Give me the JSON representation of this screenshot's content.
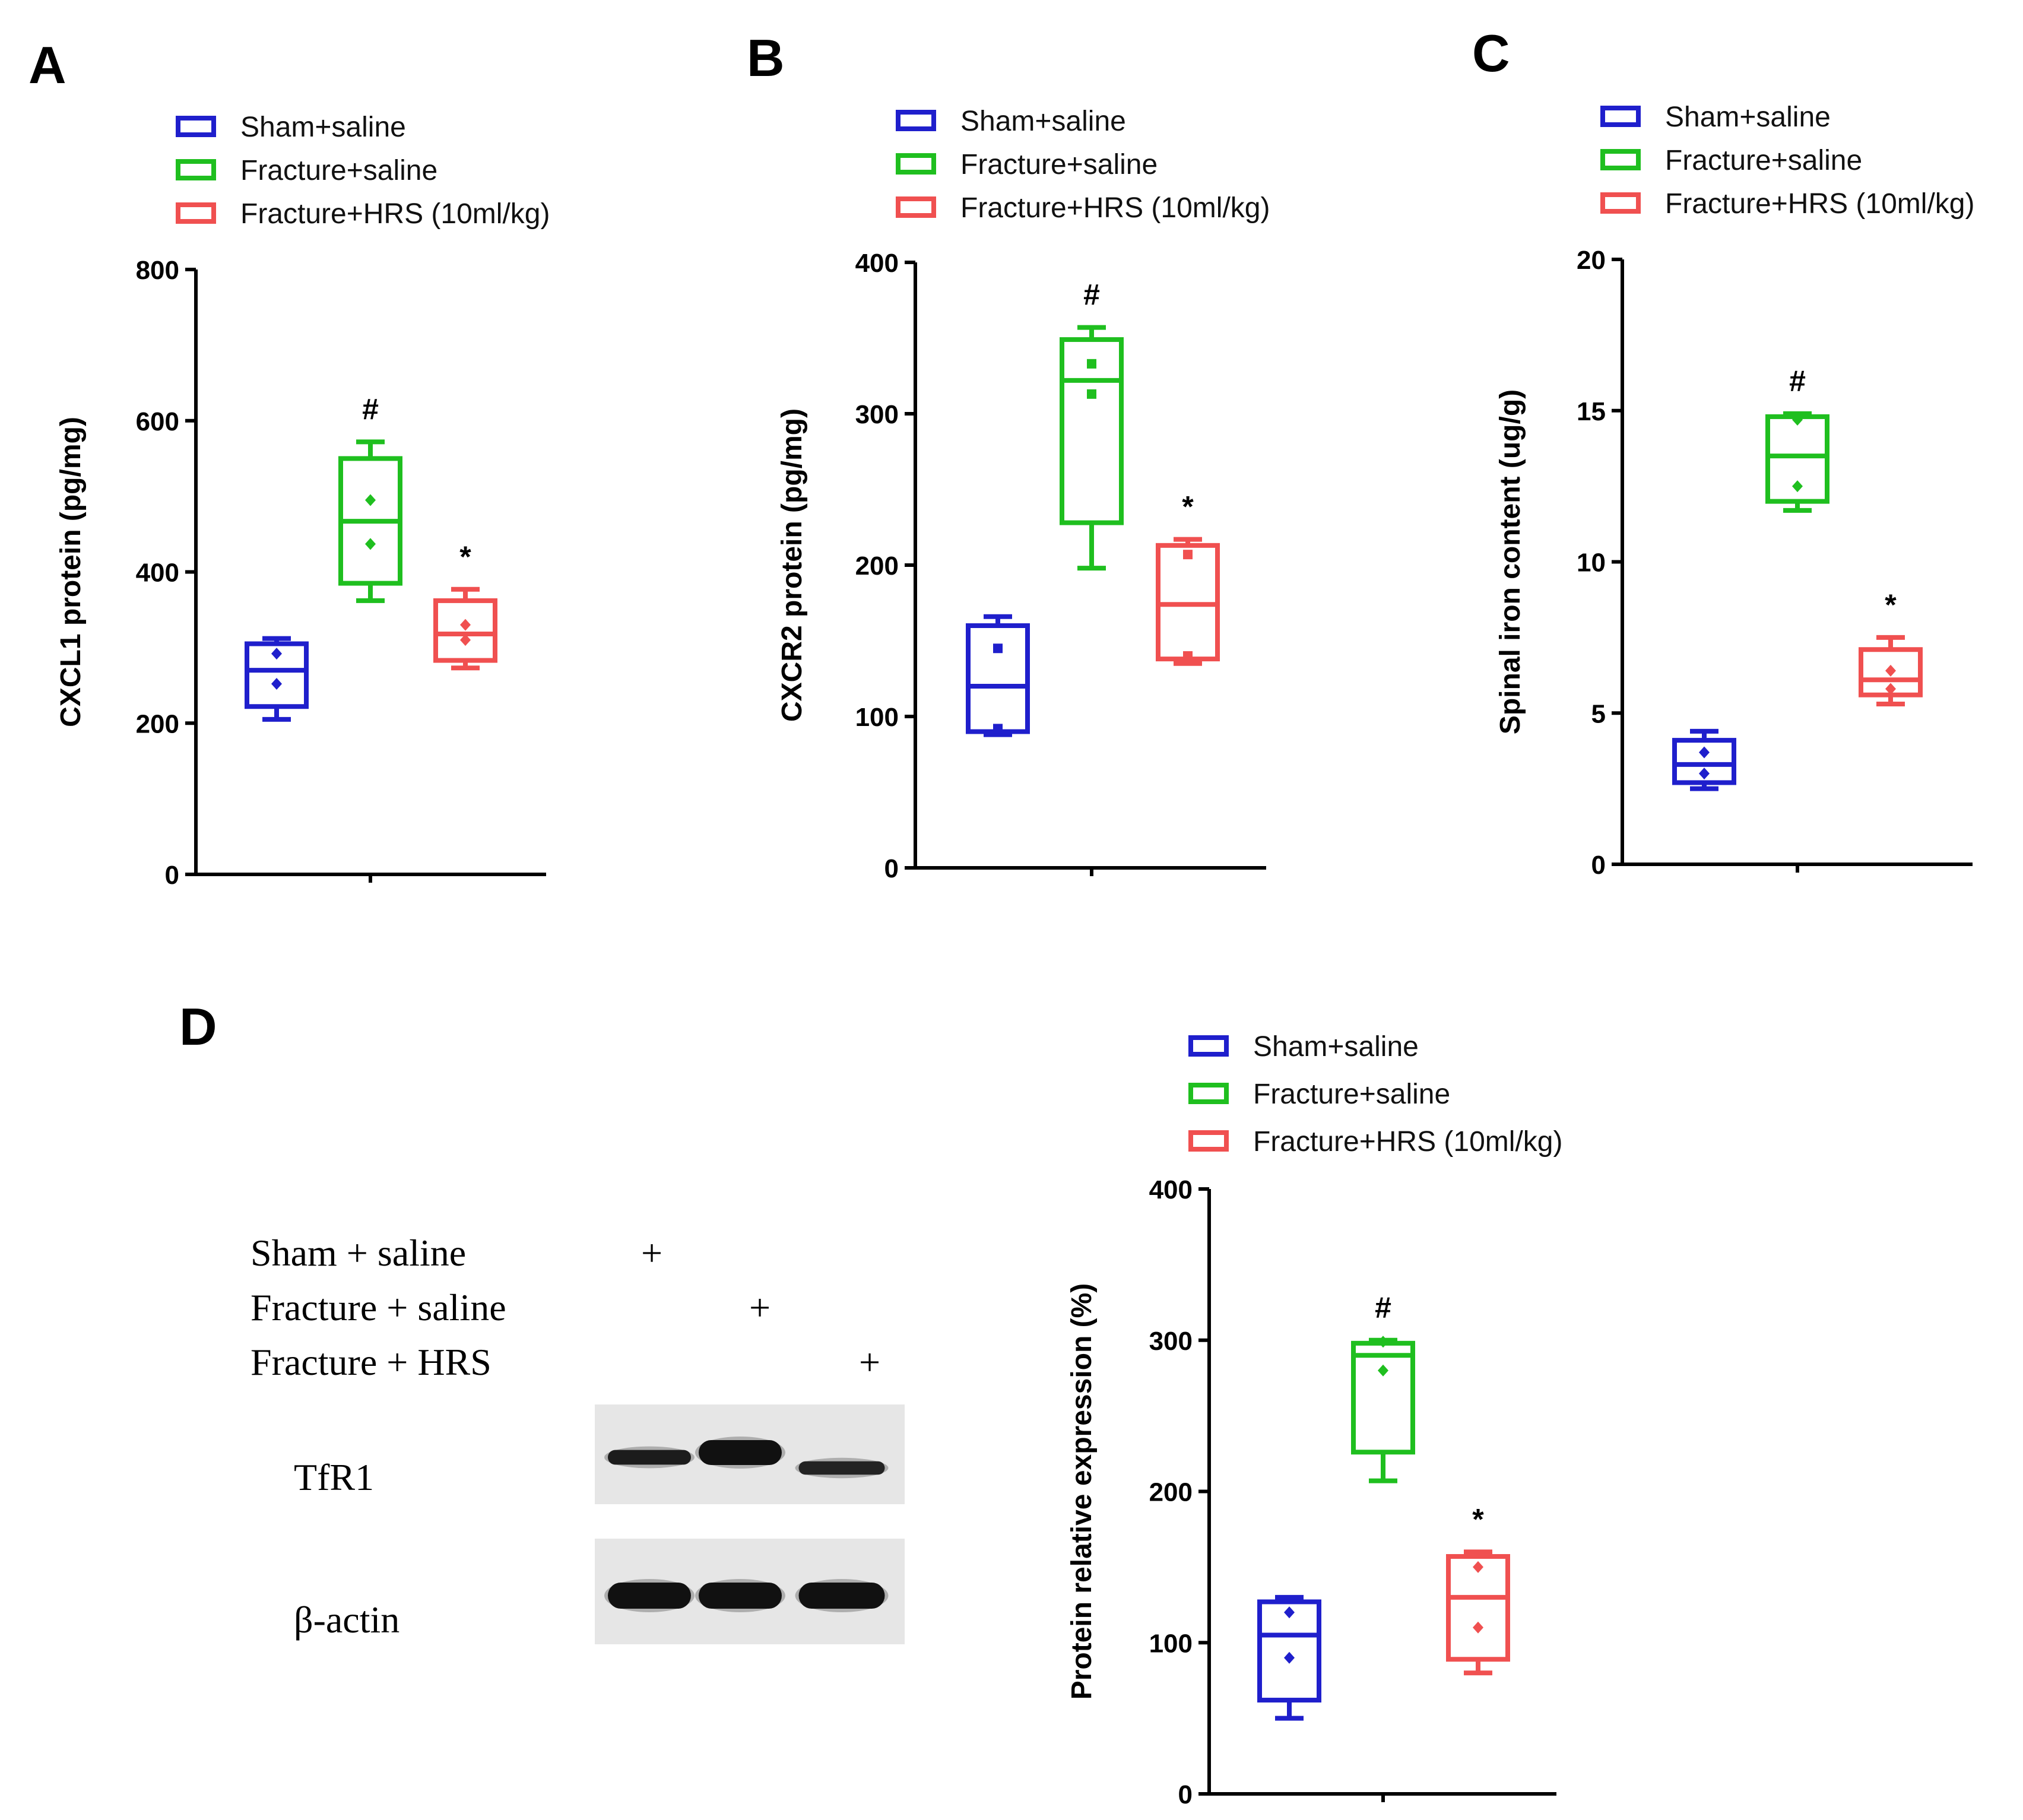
{
  "colors": {
    "sham": "#1f1fcc",
    "fracture": "#1fbf1f",
    "hrs": "#f05050",
    "axis": "#000000"
  },
  "legend_labels": [
    "Sham+saline",
    "Fracture+saline",
    "Fracture+HRS (10ml/kg)"
  ],
  "chart_data": [
    {
      "type": "box",
      "panel": "A",
      "ylabel": "CXCL1 protein (pg/mg)",
      "ylim": [
        0,
        800
      ],
      "yticks": [
        "0",
        "200",
        "400",
        "600",
        "800"
      ],
      "groups": [
        {
          "name": "Sham+saline",
          "min": 205,
          "q1": 222,
          "median": 270,
          "q3": 305,
          "max": 312,
          "points": [
            292,
            252
          ],
          "marker": "diamond",
          "annotation": ""
        },
        {
          "name": "Fracture+saline",
          "min": 362,
          "q1": 385,
          "median": 467,
          "q3": 550,
          "max": 572,
          "points": [
            495,
            437
          ],
          "marker": "diamond",
          "annotation": "#"
        },
        {
          "name": "Fracture+HRS (10ml/kg)",
          "min": 273,
          "q1": 283,
          "median": 318,
          "q3": 362,
          "max": 377,
          "points": [
            330,
            310
          ],
          "marker": "diamond",
          "annotation": "*"
        }
      ]
    },
    {
      "type": "box",
      "panel": "B",
      "ylabel": "CXCR2 protein (pg/mg)",
      "ylim": [
        0,
        400
      ],
      "yticks": [
        "0",
        "100",
        "200",
        "300",
        "400"
      ],
      "groups": [
        {
          "name": "Sham+saline",
          "min": 88,
          "q1": 90,
          "median": 120,
          "q3": 160,
          "max": 166,
          "points": [
            145,
            92
          ],
          "marker": "square",
          "annotation": ""
        },
        {
          "name": "Fracture+saline",
          "min": 198,
          "q1": 228,
          "median": 322,
          "q3": 349,
          "max": 357,
          "points": [
            333,
            313
          ],
          "marker": "square",
          "annotation": "#"
        },
        {
          "name": "Fracture+HRS (10ml/kg)",
          "min": 135,
          "q1": 138,
          "median": 174,
          "q3": 213,
          "max": 217,
          "points": [
            207,
            140
          ],
          "marker": "square",
          "annotation": "*"
        }
      ]
    },
    {
      "type": "box",
      "panel": "C",
      "ylabel": "Spinal iron content (ug/g)",
      "ylim": [
        0,
        20
      ],
      "yticks": [
        "0",
        "5",
        "10",
        "15",
        "20"
      ],
      "groups": [
        {
          "name": "Sham+saline",
          "min": 2.5,
          "q1": 2.7,
          "median": 3.3,
          "q3": 4.1,
          "max": 4.4,
          "points": [
            3.7,
            3.0
          ],
          "marker": "diamond",
          "annotation": ""
        },
        {
          "name": "Fracture+saline",
          "min": 11.7,
          "q1": 12.0,
          "median": 13.5,
          "q3": 14.8,
          "max": 14.9,
          "points": [
            14.7,
            12.5
          ],
          "marker": "diamond",
          "annotation": "#"
        },
        {
          "name": "Fracture+HRS (10ml/kg)",
          "min": 5.3,
          "q1": 5.6,
          "median": 6.1,
          "q3": 7.1,
          "max": 7.5,
          "points": [
            6.4,
            5.8
          ],
          "marker": "diamond",
          "annotation": "*"
        }
      ]
    },
    {
      "type": "box",
      "panel": "D",
      "ylabel": "Protein relative expression (%)",
      "ylim": [
        0,
        400
      ],
      "yticks": [
        "0",
        "100",
        "200",
        "300",
        "400"
      ],
      "groups": [
        {
          "name": "Sham+saline",
          "min": 50,
          "q1": 62,
          "median": 105,
          "q3": 127,
          "max": 130,
          "points": [
            120,
            90
          ],
          "marker": "diamond",
          "annotation": ""
        },
        {
          "name": "Fracture+saline",
          "min": 207,
          "q1": 226,
          "median": 290,
          "q3": 298,
          "max": 300,
          "points": [
            299,
            280
          ],
          "marker": "diamond",
          "annotation": "#"
        },
        {
          "name": "Fracture+HRS (10ml/kg)",
          "min": 80,
          "q1": 89,
          "median": 130,
          "q3": 157,
          "max": 160,
          "points": [
            150,
            110
          ],
          "marker": "diamond",
          "annotation": "*"
        }
      ]
    }
  ],
  "western_blot": {
    "conditions": [
      "Sham + saline",
      "Fracture + saline",
      "Fracture + HRS"
    ],
    "plus_sign": "+",
    "bands": [
      "TfR1",
      "β-actin"
    ],
    "tfr1_intensity": [
      0.85,
      1.0,
      0.75
    ],
    "actin_intensity": [
      1.0,
      1.0,
      1.0
    ]
  }
}
